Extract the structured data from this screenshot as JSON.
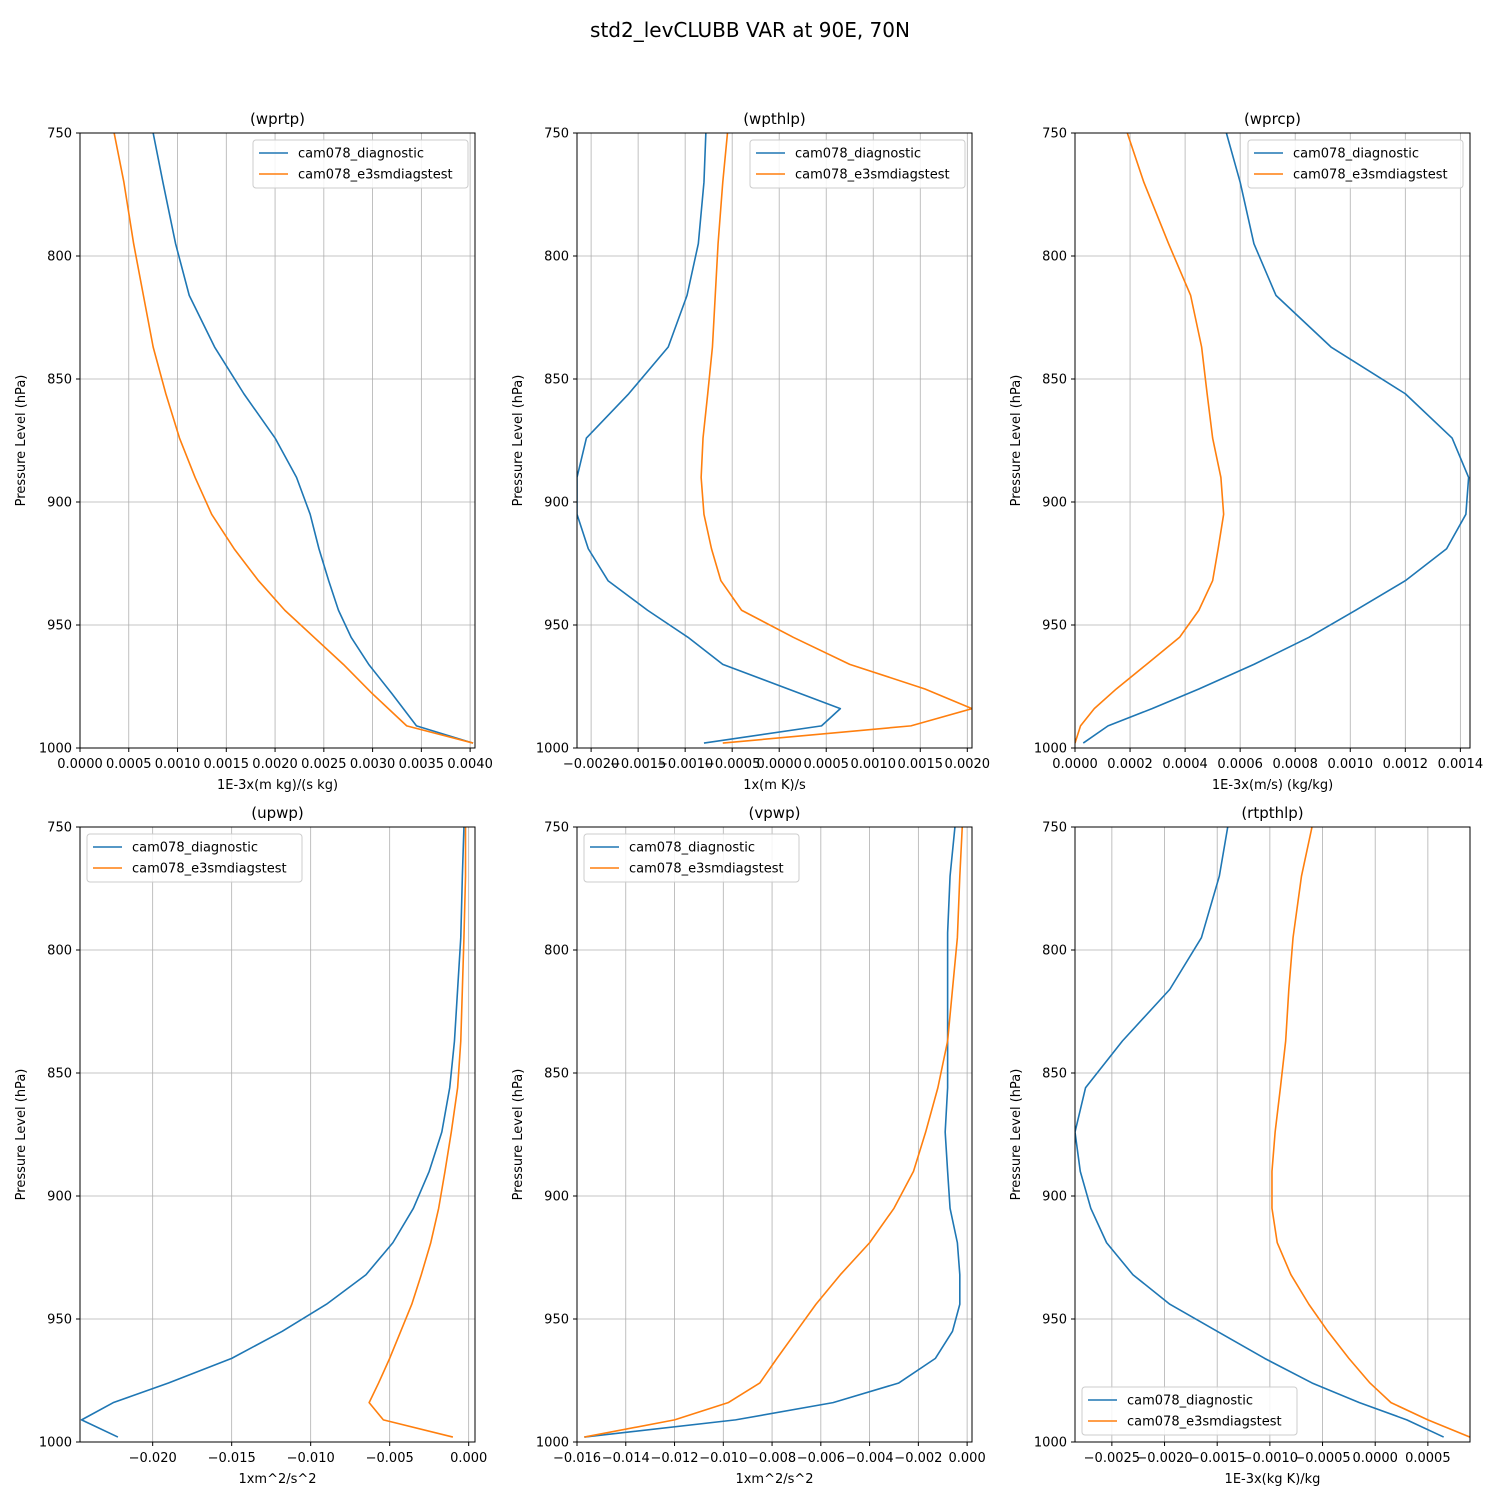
{
  "figure": {
    "title": "std2_levCLUBB VAR at 90E, 70N"
  },
  "colors": {
    "diagnostic": "#1f77b4",
    "e3smdiagstest": "#ff7f0e",
    "grid": "#b0b0b0"
  },
  "chart_data": [
    {
      "type": "line",
      "title": "(wprtp)",
      "xlabel": "1E-3x(m kg)/(s kg)",
      "ylabel": "Pressure Level (hPa)",
      "xlim": [
        0.0,
        0.00405
      ],
      "ylim": [
        1000,
        750
      ],
      "xticks": [
        0.0,
        0.0005,
        0.001,
        0.0015,
        0.002,
        0.0025,
        0.003,
        0.0035,
        0.004
      ],
      "xticklabels": [
        "0.0000",
        "0.0005",
        "0.0010",
        "0.0015",
        "0.0020",
        "0.0025",
        "0.0030",
        "0.0035",
        "0.0040"
      ],
      "yticks": [
        750,
        800,
        850,
        900,
        950,
        1000
      ],
      "yticklabels": [
        "750",
        "800",
        "850",
        "900",
        "950",
        "1000"
      ],
      "legend_loc": "upper-right",
      "series": [
        {
          "name": "cam078_diagnostic",
          "color_key": "diagnostic",
          "x": [
            0.00075,
            0.00085,
            0.00098,
            0.00112,
            0.00138,
            0.00168,
            0.002,
            0.00222,
            0.00236,
            0.00245,
            0.00255,
            0.00265,
            0.00278,
            0.00296,
            0.0032,
            0.00345,
            0.00403
          ],
          "y": [
            750,
            770,
            795,
            816,
            837,
            856,
            874,
            890,
            905,
            919,
            932,
            944,
            955,
            966,
            978,
            991,
            998
          ]
        },
        {
          "name": "cam078_e3smdiagstest",
          "color_key": "e3smdiagstest",
          "x": [
            0.00035,
            0.00045,
            0.00055,
            0.00065,
            0.00075,
            0.00088,
            0.00102,
            0.00118,
            0.00135,
            0.00158,
            0.00183,
            0.0021,
            0.0024,
            0.0027,
            0.003,
            0.00335,
            0.00403
          ],
          "y": [
            750,
            770,
            795,
            816,
            837,
            856,
            874,
            890,
            905,
            919,
            932,
            944,
            955,
            966,
            978,
            991,
            998
          ]
        }
      ]
    },
    {
      "type": "line",
      "title": "(wpthlp)",
      "xlabel": "1x(m K)/s",
      "ylabel": "Pressure Level (hPa)",
      "xlim": [
        -0.00215,
        0.00205
      ],
      "ylim": [
        1000,
        750
      ],
      "xticks": [
        -0.002,
        -0.0015,
        -0.001,
        -0.0005,
        0.0,
        0.0005,
        0.001,
        0.0015,
        0.002
      ],
      "xticklabels": [
        "−0.0020",
        "−0.0015",
        "−0.0010",
        "−0.0005",
        "0.0000",
        "0.0005",
        "0.0010",
        "0.0015",
        "0.0020"
      ],
      "yticks": [
        750,
        800,
        850,
        900,
        950,
        1000
      ],
      "yticklabels": [
        "750",
        "800",
        "850",
        "900",
        "950",
        "1000"
      ],
      "legend_loc": "upper-right",
      "series": [
        {
          "name": "cam078_diagnostic",
          "color_key": "diagnostic",
          "x": [
            -0.00078,
            -0.0008,
            -0.00086,
            -0.00098,
            -0.00118,
            -0.0016,
            -0.00205,
            -0.00215,
            -0.00215,
            -0.00203,
            -0.00182,
            -0.0014,
            -0.00097,
            -0.0006,
            0.00065,
            0.00045,
            -0.0008
          ],
          "y": [
            750,
            770,
            795,
            816,
            837,
            856,
            874,
            890,
            905,
            919,
            932,
            944,
            955,
            966,
            984,
            991,
            998
          ]
        },
        {
          "name": "cam078_e3smdiagstest",
          "color_key": "e3smdiagstest",
          "x": [
            -0.00055,
            -0.0006,
            -0.00065,
            -0.00068,
            -0.00071,
            -0.00076,
            -0.00081,
            -0.00083,
            -0.0008,
            -0.00072,
            -0.00062,
            -0.0004,
            0.00015,
            0.00075,
            0.00155,
            0.00205,
            0.0014,
            -0.0006
          ],
          "y": [
            750,
            770,
            795,
            816,
            837,
            856,
            874,
            890,
            905,
            919,
            932,
            944,
            955,
            966,
            976,
            984,
            991,
            998
          ]
        }
      ]
    },
    {
      "type": "line",
      "title": "(wprcp)",
      "xlabel": "1E-3x(m/s) (kg/kg)",
      "ylabel": "Pressure Level (hPa)",
      "xlim": [
        0.0,
        0.001435
      ],
      "ylim": [
        1000,
        750
      ],
      "xticks": [
        0.0,
        0.0002,
        0.0004,
        0.0006,
        0.0008,
        0.001,
        0.0012,
        0.0014
      ],
      "xticklabels": [
        "0.0000",
        "0.0002",
        "0.0004",
        "0.0006",
        "0.0008",
        "0.0010",
        "0.0012",
        "0.0014"
      ],
      "yticks": [
        750,
        800,
        850,
        900,
        950,
        1000
      ],
      "yticklabels": [
        "750",
        "800",
        "850",
        "900",
        "950",
        "1000"
      ],
      "legend_loc": "upper-right",
      "series": [
        {
          "name": "cam078_diagnostic",
          "color_key": "diagnostic",
          "x": [
            0.00055,
            0.0006,
            0.00065,
            0.00073,
            0.00093,
            0.0012,
            0.00137,
            0.00143,
            0.00142,
            0.00135,
            0.0012,
            0.00102,
            0.00085,
            0.00065,
            0.00045,
            0.00028,
            0.00012,
            3e-05
          ],
          "y": [
            750,
            770,
            795,
            816,
            837,
            856,
            874,
            890,
            905,
            919,
            932,
            944,
            955,
            966,
            976,
            984,
            991,
            998
          ]
        },
        {
          "name": "cam078_e3smdiagstest",
          "color_key": "e3smdiagstest",
          "x": [
            0.00019,
            0.00025,
            0.00034,
            0.00042,
            0.00046,
            0.00048,
            0.0005,
            0.00053,
            0.00054,
            0.00052,
            0.0005,
            0.00045,
            0.00038,
            0.00026,
            0.00015,
            7e-05,
            2e-05,
            0.0
          ],
          "y": [
            750,
            770,
            795,
            816,
            837,
            856,
            874,
            890,
            905,
            919,
            932,
            944,
            955,
            966,
            976,
            984,
            991,
            998
          ]
        }
      ]
    },
    {
      "type": "line",
      "title": "(upwp)",
      "xlabel": "1xm^2/s^2",
      "ylabel": "Pressure Level (hPa)",
      "xlim": [
        -0.0246,
        0.0004
      ],
      "ylim": [
        1000,
        750
      ],
      "xticks": [
        -0.02,
        -0.015,
        -0.01,
        -0.005,
        0.0
      ],
      "xticklabels": [
        "−0.020",
        "−0.015",
        "−0.010",
        "−0.005",
        "0.000"
      ],
      "yticks": [
        750,
        800,
        850,
        900,
        950,
        1000
      ],
      "yticklabels": [
        "750",
        "800",
        "850",
        "900",
        "950",
        "1000"
      ],
      "legend_loc": "upper-left",
      "series": [
        {
          "name": "cam078_diagnostic",
          "color_key": "diagnostic",
          "x": [
            -0.0003,
            -0.0004,
            -0.0005,
            -0.0007,
            -0.0009,
            -0.0012,
            -0.0017,
            -0.0025,
            -0.0035,
            -0.0048,
            -0.0065,
            -0.009,
            -0.0118,
            -0.015,
            -0.019,
            -0.0225,
            -0.0245,
            -0.0222
          ],
          "y": [
            750,
            770,
            795,
            816,
            837,
            856,
            874,
            890,
            905,
            919,
            932,
            944,
            955,
            966,
            976,
            984,
            991,
            998
          ]
        },
        {
          "name": "cam078_e3smdiagstest",
          "color_key": "e3smdiagstest",
          "x": [
            -0.0002,
            -0.0002,
            -0.0003,
            -0.0004,
            -0.0005,
            -0.0007,
            -0.0011,
            -0.0015,
            -0.0019,
            -0.0024,
            -0.003,
            -0.0036,
            -0.0043,
            -0.005,
            -0.0057,
            -0.0063,
            -0.0054,
            -0.001
          ],
          "y": [
            750,
            770,
            795,
            816,
            837,
            856,
            874,
            890,
            905,
            919,
            932,
            944,
            955,
            966,
            976,
            984,
            991,
            998
          ]
        }
      ]
    },
    {
      "type": "line",
      "title": "(vpwp)",
      "xlabel": "1xm^2/s^2",
      "ylabel": "Pressure Level (hPa)",
      "xlim": [
        -0.016,
        0.0002
      ],
      "ylim": [
        1000,
        750
      ],
      "xticks": [
        -0.016,
        -0.014,
        -0.012,
        -0.01,
        -0.008,
        -0.006,
        -0.004,
        -0.002,
        0.0
      ],
      "xticklabels": [
        "−0.016",
        "−0.014",
        "−0.012",
        "−0.010",
        "−0.008",
        "−0.006",
        "−0.004",
        "−0.002",
        "0.000"
      ],
      "yticks": [
        750,
        800,
        850,
        900,
        950,
        1000
      ],
      "yticklabels": [
        "750",
        "800",
        "850",
        "900",
        "950",
        "1000"
      ],
      "legend_loc": "upper-left",
      "series": [
        {
          "name": "cam078_diagnostic",
          "color_key": "diagnostic",
          "x": [
            -0.0005,
            -0.0007,
            -0.0008,
            -0.0008,
            -0.0008,
            -0.0008,
            -0.0009,
            -0.0008,
            -0.0007,
            -0.0004,
            -0.0003,
            -0.0003,
            -0.0006,
            -0.0013,
            -0.0028,
            -0.0055,
            -0.0095,
            -0.0157
          ],
          "y": [
            750,
            770,
            793,
            816,
            837,
            856,
            874,
            890,
            905,
            919,
            932,
            944,
            955,
            966,
            976,
            984,
            991,
            998
          ]
        },
        {
          "name": "cam078_e3smdiagstest",
          "color_key": "e3smdiagstest",
          "x": [
            -0.0002,
            -0.0003,
            -0.0004,
            -0.0006,
            -0.0008,
            -0.0012,
            -0.0017,
            -0.0022,
            -0.003,
            -0.004,
            -0.0052,
            -0.0062,
            -0.007,
            -0.0078,
            -0.0085,
            -0.0098,
            -0.012,
            -0.0157
          ],
          "y": [
            750,
            770,
            795,
            816,
            837,
            856,
            874,
            890,
            905,
            919,
            932,
            944,
            955,
            966,
            976,
            984,
            991,
            998
          ]
        }
      ]
    },
    {
      "type": "line",
      "title": "(rtpthlp)",
      "xlabel": "1E-3x(kg K)/kg",
      "ylabel": "Pressure Level (hPa)",
      "xlim": [
        -0.00285,
        0.0009
      ],
      "ylim": [
        1000,
        750
      ],
      "xticks": [
        -0.0025,
        -0.002,
        -0.0015,
        -0.001,
        -0.0005,
        0.0,
        0.0005
      ],
      "xticklabels": [
        "−0.0025",
        "−0.0020",
        "−0.0015",
        "−0.0010",
        "−0.0005",
        "0.0000",
        "0.0005"
      ],
      "yticks": [
        750,
        800,
        850,
        900,
        950,
        1000
      ],
      "yticklabels": [
        "750",
        "800",
        "850",
        "900",
        "950",
        "1000"
      ],
      "legend_loc": "lower-left",
      "series": [
        {
          "name": "cam078_diagnostic",
          "color_key": "diagnostic",
          "x": [
            -0.0014,
            -0.00148,
            -0.00165,
            -0.00195,
            -0.0024,
            -0.00275,
            -0.00285,
            -0.0028,
            -0.0027,
            -0.00255,
            -0.0023,
            -0.00195,
            -0.0015,
            -0.00105,
            -0.0006,
            -0.00015,
            0.0003,
            0.00065
          ],
          "y": [
            750,
            770,
            795,
            816,
            837,
            856,
            874,
            890,
            905,
            919,
            932,
            944,
            955,
            966,
            976,
            984,
            991,
            998
          ]
        },
        {
          "name": "cam078_e3smdiagstest",
          "color_key": "e3smdiagstest",
          "x": [
            -0.0006,
            -0.0007,
            -0.00078,
            -0.00082,
            -0.00085,
            -0.0009,
            -0.00095,
            -0.00098,
            -0.00098,
            -0.00093,
            -0.0008,
            -0.00063,
            -0.00045,
            -0.00025,
            -5e-05,
            0.00015,
            0.0005,
            0.0009
          ],
          "y": [
            750,
            770,
            795,
            816,
            837,
            856,
            874,
            890,
            905,
            919,
            932,
            944,
            955,
            966,
            976,
            984,
            991,
            998
          ]
        }
      ]
    }
  ]
}
